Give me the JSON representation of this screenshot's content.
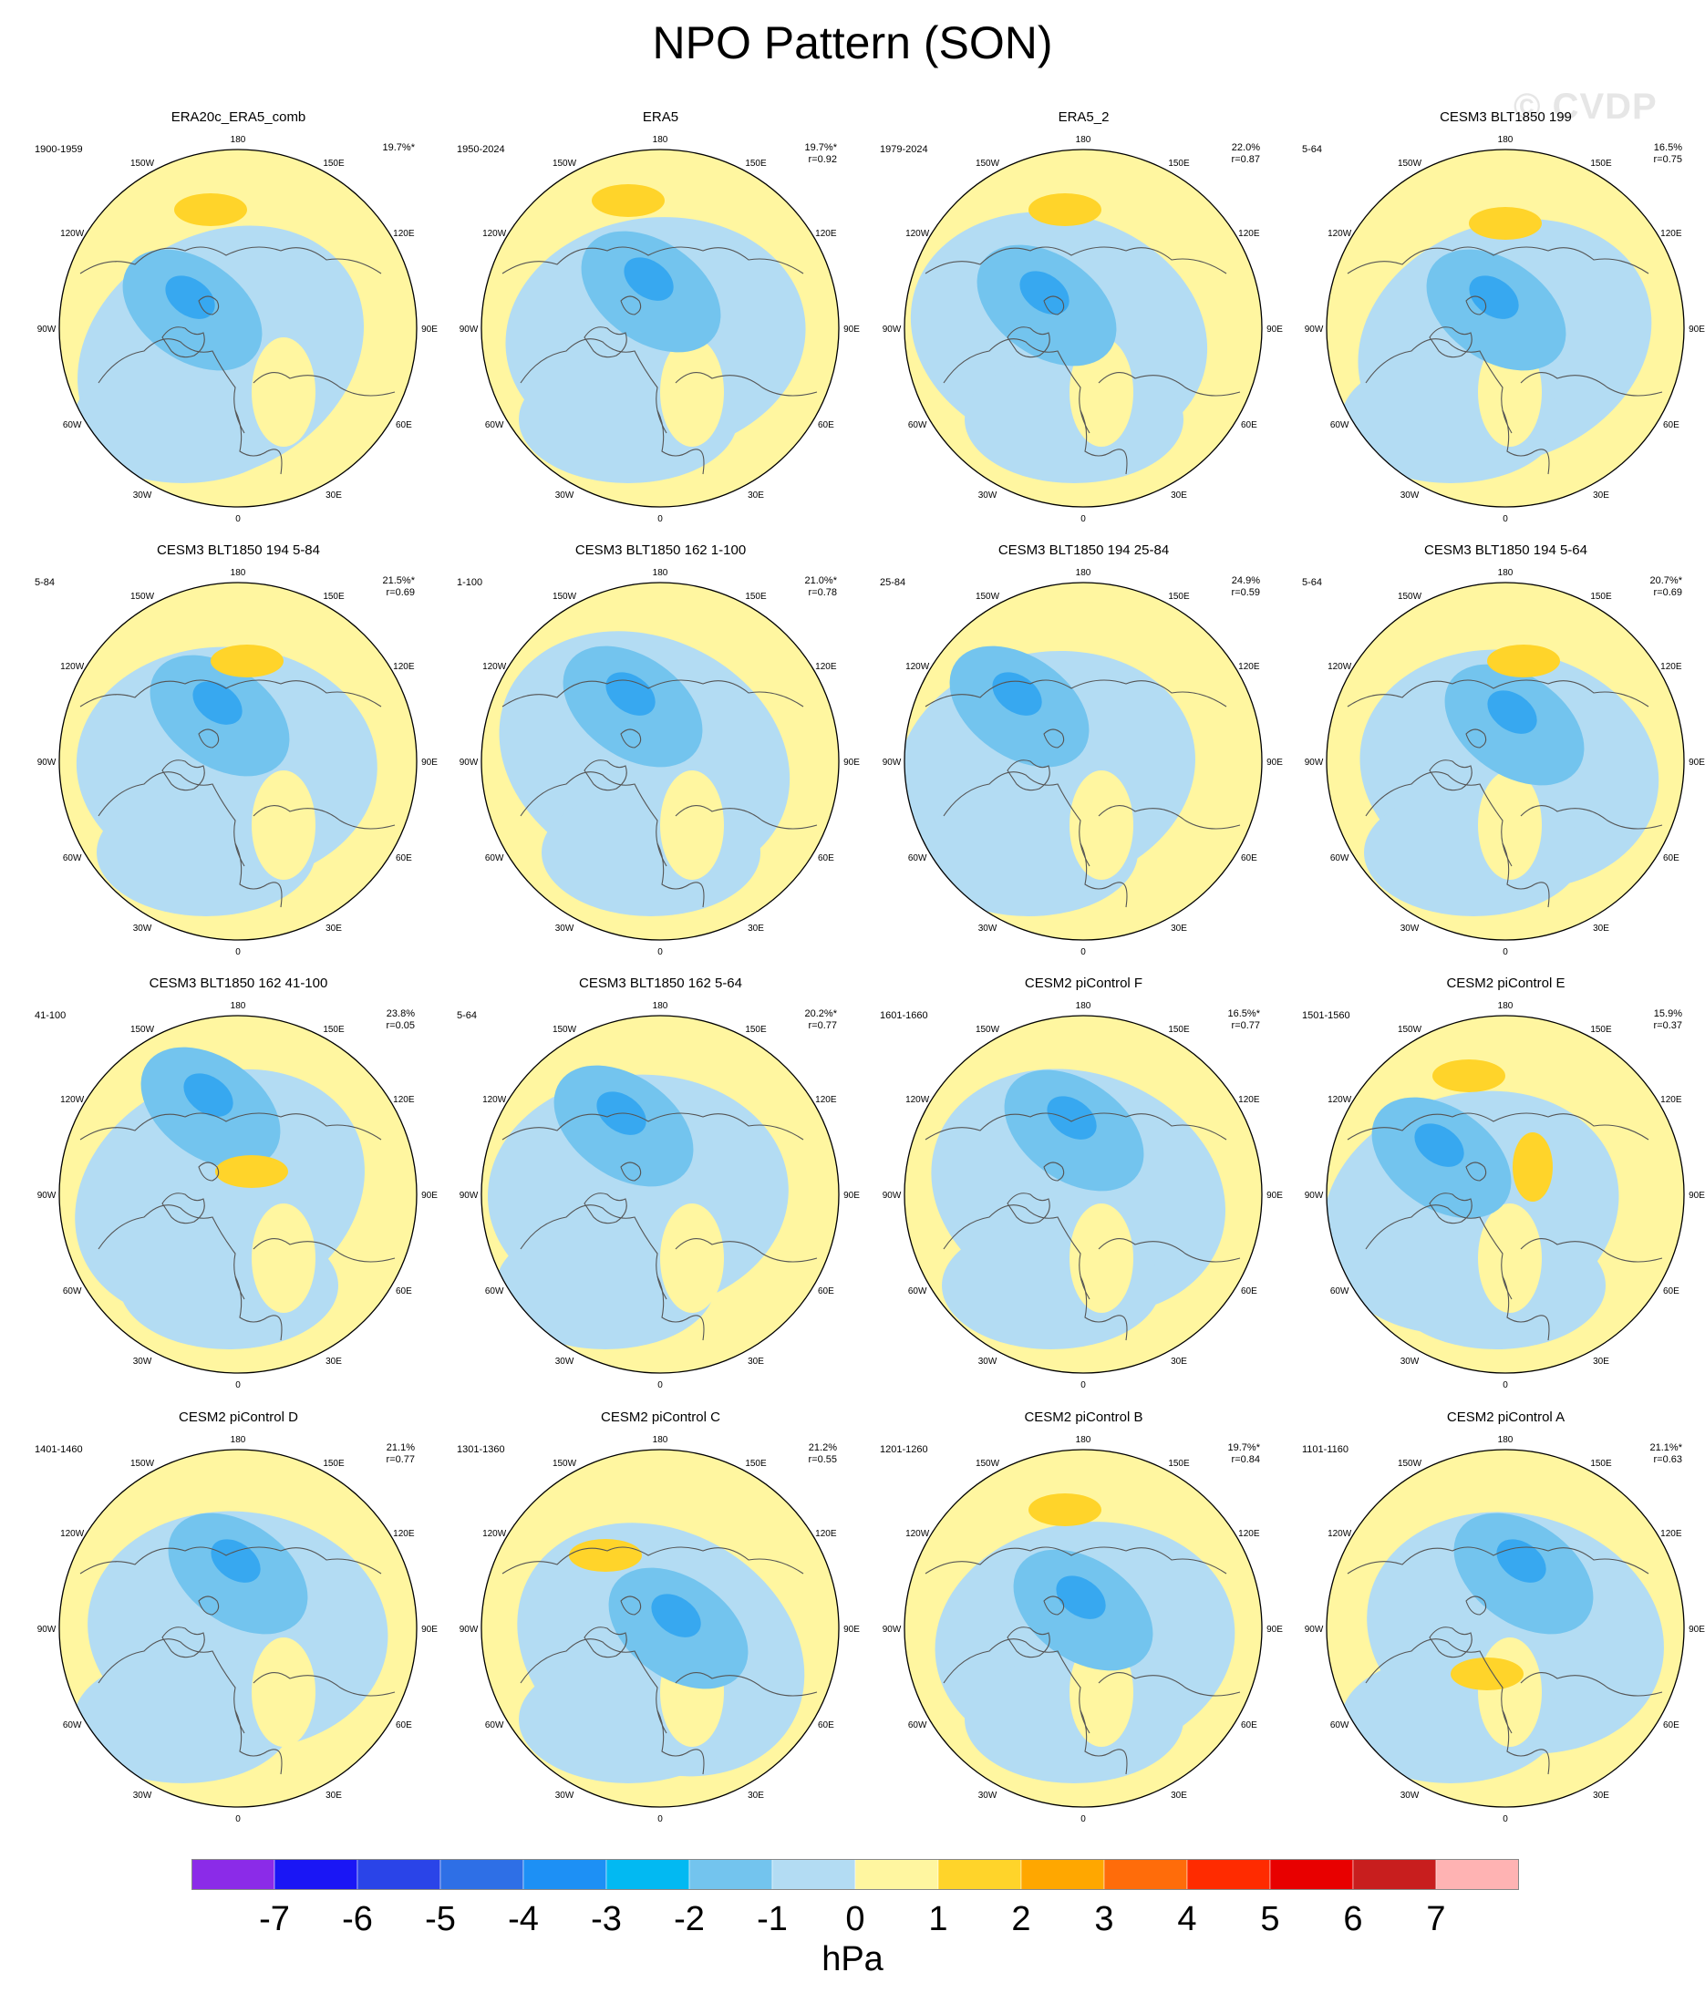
{
  "title": "NPO Pattern (SON)",
  "watermark": "© CVDP",
  "unit": "hPa",
  "colors": {
    "ocean_positive": "#fff6a0",
    "light_negative": "#b3dcf3",
    "mid_negative": "#73c4ee",
    "strong_negative": "#37a8f0",
    "positive_strong": "#ffd42a",
    "coast": "#555555"
  },
  "longitude_labels": [
    "180",
    "150E",
    "120E",
    "90E",
    "60E",
    "30E",
    "0",
    "30W",
    "60W",
    "90W",
    "120W",
    "150W"
  ],
  "colorbar": {
    "colors": [
      "#8b2be8",
      "#1a16f5",
      "#2a44e8",
      "#2e6fe6",
      "#1d90f5",
      "#02b9f2",
      "#73c4ee",
      "#b3dcf3",
      "#fff6a0",
      "#ffd42a",
      "#ffa700",
      "#ff6c0a",
      "#ff2b00",
      "#e80000",
      "#c81e1e",
      "#ffb3b3"
    ],
    "labels": [
      "-7",
      "-6",
      "-5",
      "-4",
      "-3",
      "-2",
      "-1",
      "0",
      "1",
      "2",
      "3",
      "4",
      "5",
      "6",
      "7"
    ]
  },
  "panels": [
    {
      "title": "ERA20c_ERA5_comb",
      "period": "1900-1959",
      "pct": "19.7%*",
      "r": ""
    },
    {
      "title": "ERA5",
      "period": "1950-2024",
      "pct": "19.7%*",
      "r": "r=0.92"
    },
    {
      "title": "ERA5_2",
      "period": "1979-2024",
      "pct": "22.0%",
      "r": "r=0.87"
    },
    {
      "title": "CESM3 BLT1850 199",
      "period": "5-64",
      "pct": "16.5%",
      "r": "r=0.75"
    },
    {
      "title": "CESM3 BLT1850 194 5-84",
      "period": "5-84",
      "pct": "21.5%*",
      "r": "r=0.69"
    },
    {
      "title": "CESM3 BLT1850 162 1-100",
      "period": "1-100",
      "pct": "21.0%*",
      "r": "r=0.78"
    },
    {
      "title": "CESM3 BLT1850 194 25-84",
      "period": "25-84",
      "pct": "24.9%",
      "r": "r=0.59"
    },
    {
      "title": "CESM3 BLT1850 194 5-64",
      "period": "5-64",
      "pct": "20.7%*",
      "r": "r=0.69"
    },
    {
      "title": "CESM3 BLT1850 162 41-100",
      "period": "41-100",
      "pct": "23.8%",
      "r": "r=0.05"
    },
    {
      "title": "CESM3 BLT1850 162 5-64",
      "period": "5-64",
      "pct": "20.2%*",
      "r": "r=0.77"
    },
    {
      "title": "CESM2 piControl F",
      "period": "1601-1660",
      "pct": "16.5%*",
      "r": "r=0.77"
    },
    {
      "title": "CESM2 piControl E",
      "period": "1501-1560",
      "pct": "15.9%",
      "r": "r=0.37"
    },
    {
      "title": "CESM2 piControl D",
      "period": "1401-1460",
      "pct": "21.1%",
      "r": "r=0.77"
    },
    {
      "title": "CESM2 piControl C",
      "period": "1301-1360",
      "pct": "21.2%",
      "r": "r=0.55"
    },
    {
      "title": "CESM2 piControl B",
      "period": "1201-1260",
      "pct": "19.7%*",
      "r": "r=0.84"
    },
    {
      "title": "CESM2 piControl A",
      "period": "1101-1160",
      "pct": "21.1%*",
      "r": "r=0.63"
    }
  ]
}
